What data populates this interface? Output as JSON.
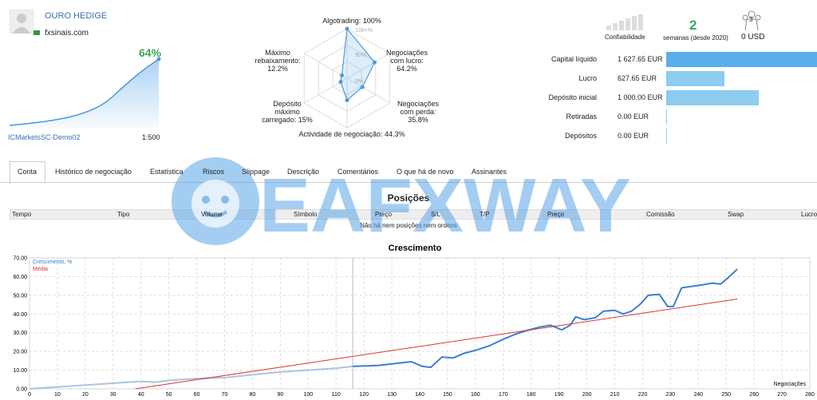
{
  "header": {
    "name": "OURO HEDIGE",
    "site": "fxsinais.com"
  },
  "summary": {
    "growth": "64%",
    "server": "ICMarketsSC-Demo02",
    "leverage": "1:500"
  },
  "radar": {
    "rings": [
      "100+%",
      "50%",
      "0%"
    ],
    "axes": [
      {
        "label": "Algotrading: 100%",
        "value": 100
      },
      {
        "label": "Negociações\ncom lucro:\n64.2%",
        "value": 64.2
      },
      {
        "label": "Negociações\ncom perda:\n35.8%",
        "value": 35.8
      },
      {
        "label": "Actividade de negociação: 44.3%",
        "value": 44.3
      },
      {
        "label": "Depósito\nmáximo\ncarregado: 15%",
        "value": 15
      },
      {
        "label": "Máximo\nrebaixamento:\n12.2%",
        "value": 12.2
      }
    ]
  },
  "stats": {
    "reliability": "Confiabilidade",
    "weeks": "2",
    "weeks_label": "semanas (desde 2020)",
    "subscribers": "3",
    "subscribers_value": "0 USD"
  },
  "balance": {
    "rows": [
      {
        "label": "Capital líquido",
        "value": 1627.65,
        "value_label": "1 627.65 EUR"
      },
      {
        "label": "Lucro",
        "value": 627.65,
        "value_label": "627.65 EUR"
      },
      {
        "label": "Depósito inicial",
        "value": 1000.0,
        "value_label": "1 000.00 EUR"
      },
      {
        "label": "Retiradas",
        "value": 0,
        "value_label": "0.00 EUR"
      },
      {
        "label": "Depósitos",
        "value": 0,
        "value_label": "0.00 EUR"
      }
    ]
  },
  "tabs": [
    "Conta",
    "Histórico de negociação",
    "Estatística",
    "Riscos",
    "Slippage",
    "Descrição",
    "Comentários",
    "O que há de novo",
    "Assinantes"
  ],
  "positions": {
    "title": "Posições",
    "columns": [
      "Tempo",
      "Tipo",
      "Volume",
      "Símbolo",
      "Preço",
      "S/L",
      "T/P",
      "Preço",
      "Comissão",
      "Swap",
      "Lucro"
    ],
    "empty": "Não há nem posições nem ordens"
  },
  "watermark": "EAFXWAY",
  "chart_data": {
    "type": "line",
    "title": "Crescimento",
    "x_label": "Negociações",
    "xlim": [
      0,
      280
    ],
    "xticks": [
      0,
      10,
      20,
      30,
      40,
      50,
      60,
      70,
      80,
      90,
      100,
      110,
      120,
      130,
      140,
      150,
      160,
      170,
      180,
      190,
      200,
      210,
      220,
      230,
      240,
      250,
      260,
      270,
      280
    ],
    "ylim": [
      0,
      70
    ],
    "yticks": [
      {
        "value": 0,
        "label": "0.00"
      },
      {
        "value": 10,
        "label": "10.00"
      },
      {
        "value": 20,
        "label": "20.00"
      },
      {
        "value": 30,
        "label": "30.00"
      },
      {
        "value": 40,
        "label": "40.00"
      },
      {
        "value": 50,
        "label": "50.00"
      },
      {
        "value": 60,
        "label": "60.00"
      },
      {
        "value": 70,
        "label": "70.00"
      }
    ],
    "grid": true,
    "marker_x": 116,
    "history_color": "#aec3dc",
    "series": [
      {
        "name": "Crescimento, %",
        "color": "#3a7fd5",
        "x": [
          0,
          10,
          20,
          30,
          40,
          45,
          50,
          60,
          70,
          80,
          90,
          100,
          110,
          116,
          125,
          137,
          141,
          144,
          148,
          152,
          156,
          161,
          165,
          170,
          174,
          178,
          183,
          187,
          191,
          194,
          196,
          199,
          203,
          206,
          210,
          213,
          216,
          219,
          222,
          226,
          229,
          231,
          234,
          241,
          245,
          248,
          250,
          254
        ],
        "values": [
          0,
          1,
          2,
          3,
          4,
          3.5,
          4.5,
          5.5,
          6,
          7.5,
          9,
          10,
          11,
          12,
          12.5,
          14.5,
          12,
          11.5,
          17,
          16.5,
          19,
          21,
          23,
          26.5,
          29,
          31,
          33,
          34,
          31.5,
          34,
          38.5,
          37,
          38,
          41.5,
          42,
          40,
          41.5,
          45,
          50,
          50.5,
          44,
          44,
          54,
          55.5,
          56.5,
          56,
          58.5,
          64
        ]
      },
      {
        "name": "Média",
        "color": "#d9352c",
        "x": [
          38,
          254
        ],
        "values": [
          0,
          48
        ]
      }
    ]
  }
}
